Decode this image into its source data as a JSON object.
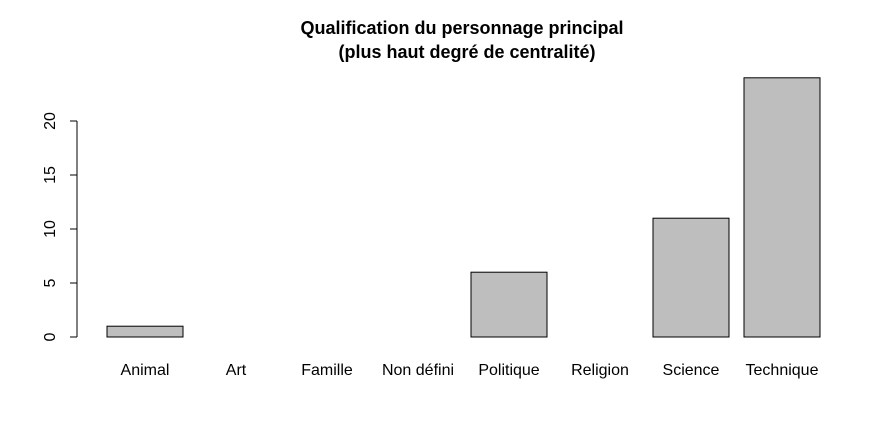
{
  "chart_data": {
    "type": "bar",
    "title_line1": "Qualification du personnage principal",
    "title_line2": "(plus haut degré de centralité)",
    "xlabel": "",
    "ylabel": "",
    "categories": [
      "Animal",
      "Art",
      "Famille",
      "Non défini",
      "Politique",
      "Religion",
      "Science",
      "Technique"
    ],
    "values": [
      1,
      0,
      0,
      0,
      6,
      0,
      11,
      24
    ],
    "ylim": [
      0,
      24
    ],
    "yticks": [
      "0",
      "5",
      "10",
      "15",
      "20"
    ],
    "grid": false,
    "bar_color": "#bebebe",
    "bar_border_color": "#000000"
  }
}
